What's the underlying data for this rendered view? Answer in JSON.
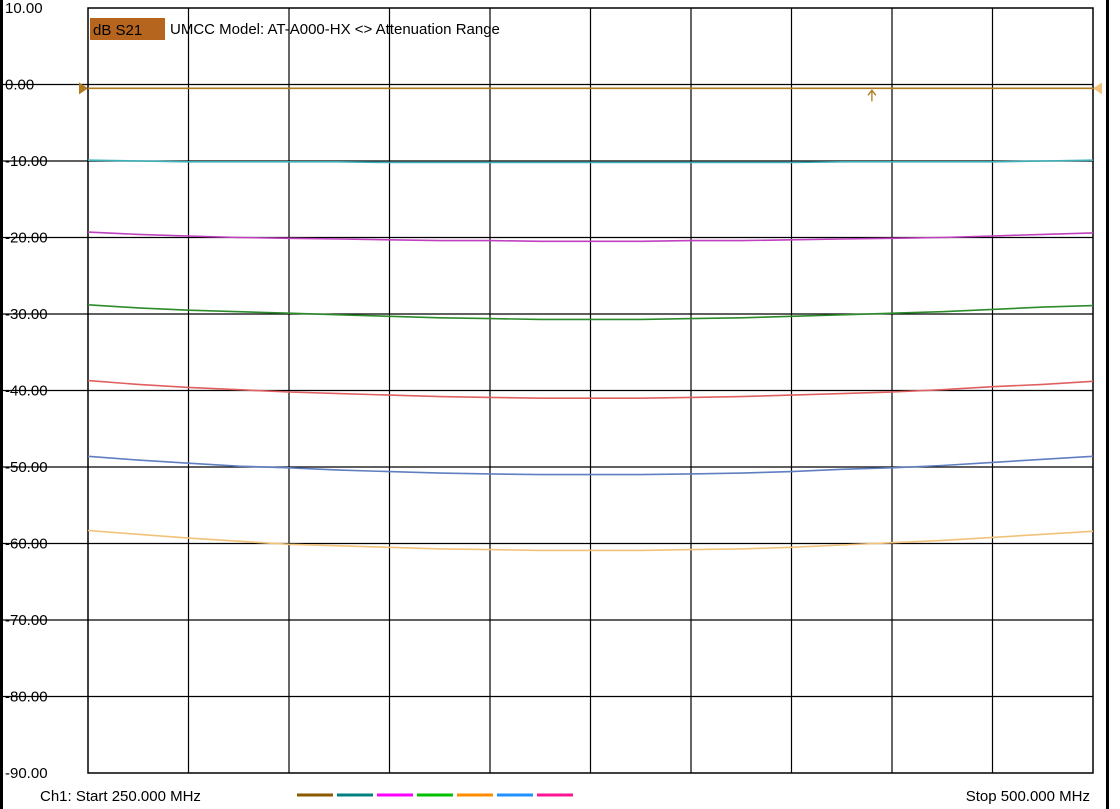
{
  "channel": {
    "measurement_badge": "dB S21",
    "badge_color": "#b5651d",
    "title": "UMCC  Model: AT-A000-HX <> Attenuation Range",
    "start_label": "Ch1: Start  250.000 MHz",
    "stop_label": "Stop  500.000 MHz"
  },
  "chart_data": {
    "type": "line",
    "title": "UMCC  Model: AT-A000-HX <> Attenuation Range",
    "ylabel": "dB S21",
    "xlabel": "",
    "xlim": [
      250,
      500
    ],
    "ylim": [
      -90,
      10
    ],
    "x_unit": "MHz",
    "y_ticks": [
      "10.00",
      "0.00",
      "-10.00",
      "-20.00",
      "-30.00",
      "-40.00",
      "-50.00",
      "-60.00",
      "-70.00",
      "-80.00",
      "-90.00"
    ],
    "grid": true,
    "x": [
      250,
      262.5,
      275,
      287.5,
      300,
      312.5,
      325,
      337.5,
      350,
      362.5,
      375,
      387.5,
      400,
      412.5,
      425,
      437.5,
      450,
      462.5,
      475,
      487.5,
      500
    ],
    "series": [
      {
        "color": "#b07a1e",
        "values": [
          -0.5,
          -0.5,
          -0.5,
          -0.5,
          -0.5,
          -0.5,
          -0.5,
          -0.5,
          -0.5,
          -0.5,
          -0.5,
          -0.5,
          -0.5,
          -0.5,
          -0.5,
          -0.5,
          -0.5,
          -0.5,
          -0.5,
          -0.5,
          -0.5
        ]
      },
      {
        "color": "#3ab0b8",
        "values": [
          -9.9,
          -10.0,
          -10.1,
          -10.1,
          -10.1,
          -10.1,
          -10.2,
          -10.2,
          -10.2,
          -10.2,
          -10.2,
          -10.2,
          -10.2,
          -10.2,
          -10.2,
          -10.1,
          -10.1,
          -10.1,
          -10.1,
          -10.0,
          -9.9
        ]
      },
      {
        "color": "#c040c0",
        "values": [
          -19.3,
          -19.6,
          -19.8,
          -20.0,
          -20.1,
          -20.2,
          -20.3,
          -20.4,
          -20.4,
          -20.5,
          -20.5,
          -20.5,
          -20.4,
          -20.4,
          -20.3,
          -20.2,
          -20.1,
          -20.0,
          -19.8,
          -19.6,
          -19.4
        ]
      },
      {
        "color": "#2c8c2c",
        "values": [
          -28.8,
          -29.2,
          -29.5,
          -29.7,
          -29.9,
          -30.1,
          -30.3,
          -30.5,
          -30.6,
          -30.7,
          -30.7,
          -30.7,
          -30.6,
          -30.5,
          -30.3,
          -30.1,
          -29.9,
          -29.7,
          -29.4,
          -29.1,
          -28.9
        ]
      },
      {
        "color": "#e06060",
        "values": [
          -38.7,
          -39.2,
          -39.6,
          -39.9,
          -40.2,
          -40.4,
          -40.6,
          -40.8,
          -40.9,
          -41.0,
          -41.0,
          -41.0,
          -40.9,
          -40.8,
          -40.6,
          -40.4,
          -40.2,
          -39.9,
          -39.5,
          -39.2,
          -38.8
        ]
      },
      {
        "color": "#5f7fc0",
        "values": [
          -48.6,
          -49.1,
          -49.5,
          -49.9,
          -50.1,
          -50.4,
          -50.6,
          -50.8,
          -50.9,
          -51.0,
          -51.0,
          -51.0,
          -50.9,
          -50.8,
          -50.6,
          -50.3,
          -50.1,
          -49.8,
          -49.4,
          -49.0,
          -48.6
        ]
      },
      {
        "color": "#f2c27a",
        "values": [
          -58.3,
          -58.8,
          -59.3,
          -59.7,
          -60.1,
          -60.3,
          -60.5,
          -60.7,
          -60.8,
          -60.9,
          -60.9,
          -60.9,
          -60.8,
          -60.7,
          -60.5,
          -60.2,
          -59.9,
          -59.6,
          -59.2,
          -58.8,
          -58.4
        ]
      }
    ],
    "legend_swatches": [
      "#8b5a00",
      "#008080",
      "#ff00ff",
      "#00c000",
      "#ff8c00",
      "#1e90ff",
      "#ff1493"
    ],
    "marker_x": 445
  }
}
